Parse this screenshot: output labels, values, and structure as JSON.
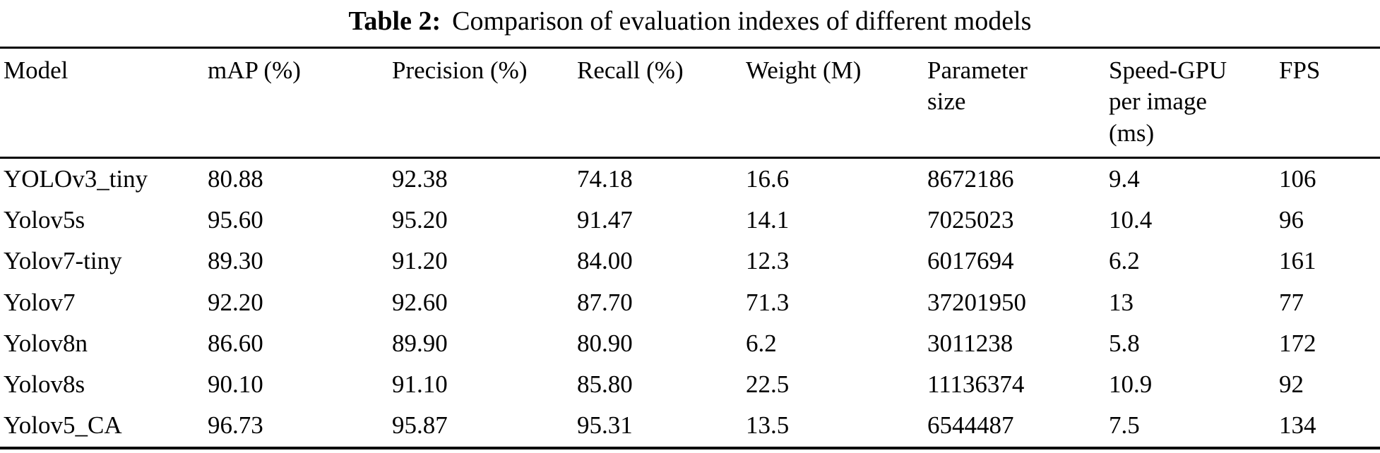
{
  "caption": {
    "label": "Table 2:",
    "text": "Comparison of evaluation indexes of different models"
  },
  "table": {
    "columns": [
      "Model",
      "mAP (%)",
      "Precision (%)",
      "Recall (%)",
      "Weight (M)",
      "Parameter\nsize",
      "Speed-GPU\nper image\n(ms)",
      "FPS"
    ],
    "rows": [
      [
        "YOLOv3_tiny",
        "80.88",
        "92.38",
        "74.18",
        "16.6",
        "8672186",
        "9.4",
        "106"
      ],
      [
        "Yolov5s",
        "95.60",
        "95.20",
        "91.47",
        "14.1",
        "7025023",
        "10.4",
        "96"
      ],
      [
        "Yolov7-tiny",
        "89.30",
        "91.20",
        "84.00",
        "12.3",
        "6017694",
        "6.2",
        "161"
      ],
      [
        "Yolov7",
        "92.20",
        "92.60",
        "87.70",
        "71.3",
        "37201950",
        "13",
        "77"
      ],
      [
        "Yolov8n",
        "86.60",
        "89.90",
        "80.90",
        "6.2",
        "3011238",
        "5.8",
        "172"
      ],
      [
        "Yolov8s",
        "90.10",
        "91.10",
        "85.80",
        "22.5",
        "11136374",
        "10.9",
        "92"
      ],
      [
        "Yolov5_CA",
        "96.73",
        "95.87",
        "95.31",
        "13.5",
        "6544487",
        "7.5",
        "134"
      ]
    ]
  },
  "colors": {
    "text": "#000000",
    "background": "#ffffff",
    "rule": "#000000"
  }
}
